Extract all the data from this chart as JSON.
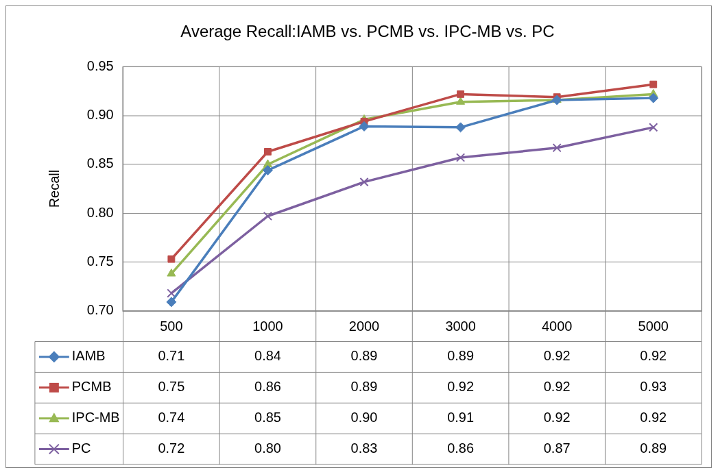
{
  "chart_data": {
    "type": "line",
    "title": "Average Recall:IAMB vs. PCMB vs. IPC-MB vs. PC",
    "ylabel": "Recall",
    "categories": [
      "500",
      "1000",
      "2000",
      "3000",
      "4000",
      "5000"
    ],
    "ylim": [
      0.7,
      0.95
    ],
    "yticks": [
      {
        "value": 0.7,
        "label": "0.70"
      },
      {
        "value": 0.75,
        "label": "0.75"
      },
      {
        "value": 0.8,
        "label": "0.80"
      },
      {
        "value": 0.85,
        "label": "0.85"
      },
      {
        "value": 0.9,
        "label": "0.90"
      },
      {
        "value": 0.95,
        "label": "0.95"
      }
    ],
    "grid": true,
    "legend": "bottom left",
    "series": [
      {
        "name": "IAMB",
        "color": "#4a7ebb",
        "marker": "diamond",
        "values": [
          0.709,
          0.844,
          0.889,
          0.888,
          0.916,
          0.918
        ],
        "value_labels": [
          "0.71",
          "0.84",
          "0.89",
          "0.89",
          "0.92",
          "0.92"
        ]
      },
      {
        "name": "PCMB",
        "color": "#be4b48",
        "marker": "square",
        "values": [
          0.753,
          0.863,
          0.894,
          0.922,
          0.919,
          0.932
        ],
        "value_labels": [
          "0.75",
          "0.86",
          "0.89",
          "0.92",
          "0.92",
          "0.93"
        ]
      },
      {
        "name": "IPC-MB",
        "color": "#98b954",
        "marker": "triangle",
        "values": [
          0.738,
          0.85,
          0.896,
          0.914,
          0.916,
          0.922
        ],
        "value_labels": [
          "0.74",
          "0.85",
          "0.90",
          "0.91",
          "0.92",
          "0.92"
        ]
      },
      {
        "name": "PC",
        "color": "#7d60a0",
        "marker": "cross",
        "values": [
          0.718,
          0.797,
          0.832,
          0.857,
          0.867,
          0.888
        ],
        "value_labels": [
          "0.72",
          "0.80",
          "0.83",
          "0.86",
          "0.87",
          "0.89"
        ]
      }
    ]
  }
}
